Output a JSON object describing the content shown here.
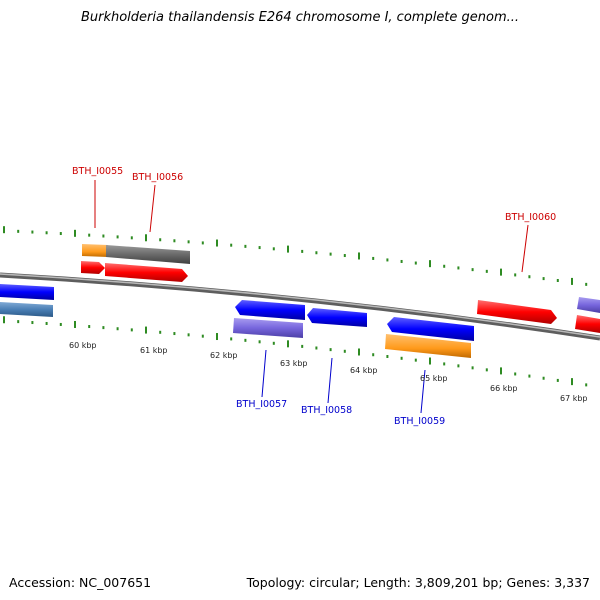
{
  "title": "Burkholderia thailandensis E264 chromosome I, complete genom...",
  "footer": {
    "accession": "Accession: NC_007651",
    "summary": "Topology: circular; Length: 3,809,201 bp; Genes: 3,337"
  },
  "colors": {
    "forward_label": "#cc0000",
    "reverse_label": "#0000cc",
    "tick_mark": "#2e8b22",
    "backbone": "#888888",
    "red_gene": "#ff0000",
    "blue_gene": "#0000ff",
    "orange_gene": "#ff9a1a",
    "gray_gene": "#6a6a6a",
    "purple_gene": "#7766dd",
    "steel_gene": "#4a7fb5"
  },
  "kbp_labels": [
    "60 kbp",
    "61 kbp",
    "62 kbp",
    "63 kbp",
    "64 kbp",
    "65 kbp",
    "66 kbp",
    "67 kbp"
  ],
  "gene_labels": {
    "forward": [
      "BTH_I0055",
      "BTH_I0056",
      "BTH_I0060"
    ],
    "reverse": [
      "BTH_I0057",
      "BTH_I0058",
      "BTH_I0059"
    ]
  }
}
